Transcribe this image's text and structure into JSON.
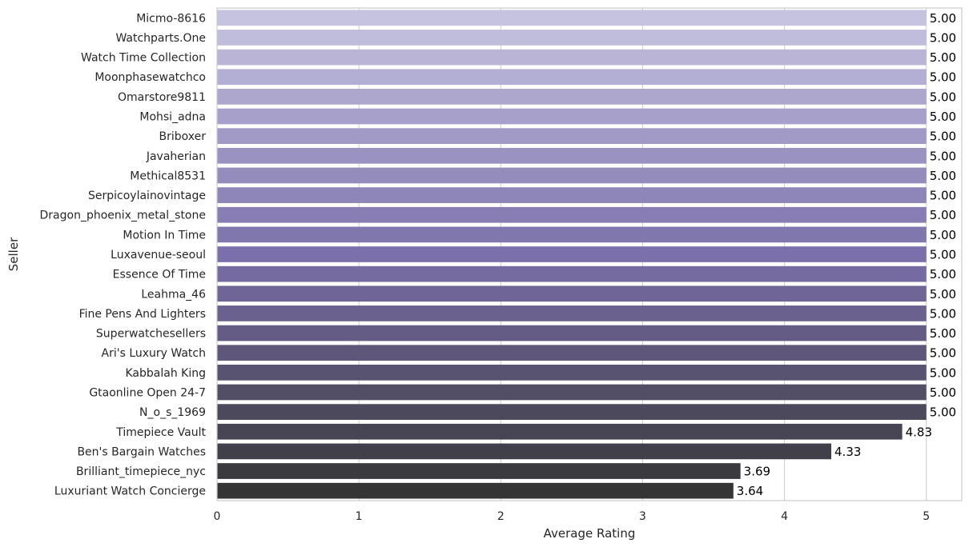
{
  "chart_data": {
    "type": "bar",
    "orientation": "horizontal",
    "title": "",
    "xlabel": "Average Rating",
    "ylabel": "Seller",
    "xlim": [
      0,
      5.25
    ],
    "xticks": [
      0,
      1,
      2,
      3,
      4,
      5
    ],
    "grid": true,
    "value_format": "2 decimals",
    "colors": {
      "start": "#c6c3e0",
      "mid": "#7b70ab",
      "end": "#353535"
    },
    "categories": [
      "Micmo-8616",
      "Watchparts.One",
      "Watch Time Collection",
      "Moonphasewatchco",
      "Omarstore9811",
      "Mohsi_adna",
      "Briboxer",
      "Javaherian",
      "Methical8531",
      "Serpicoylainovintage",
      "Dragon_phoenix_metal_stone",
      "Motion In Time",
      "Luxavenue-seoul",
      "Essence Of Time",
      "Leahma_46",
      "Fine Pens And Lighters",
      "Superwatchesellers",
      "Ari's Luxury Watch",
      "Kabbalah King ",
      "Gtaonline Open 24-7",
      "N_o_s_1969",
      "Timepiece Vault",
      "Ben's Bargain Watches",
      "Brilliant_timepiece_nyc",
      "Luxuriant Watch Concierge"
    ],
    "values": [
      5,
      5,
      5,
      5,
      5,
      5,
      5,
      5,
      5,
      5,
      5,
      5,
      5,
      5,
      5,
      5,
      5,
      5,
      5,
      5,
      5,
      4.83,
      4.33,
      3.69,
      3.64
    ]
  }
}
